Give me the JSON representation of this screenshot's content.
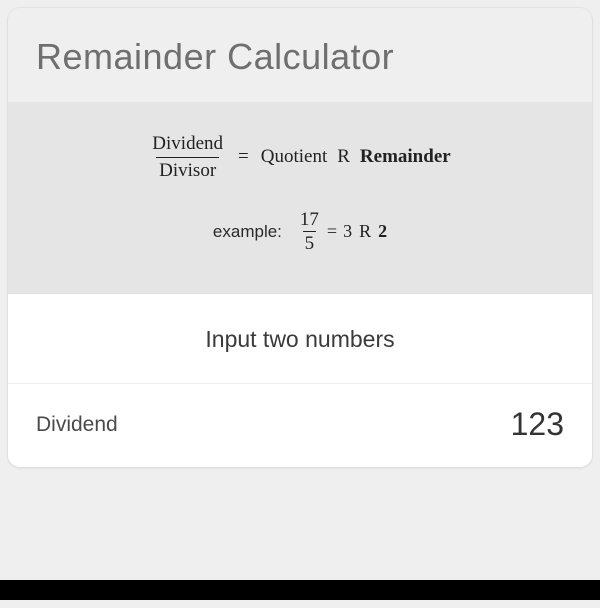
{
  "title": "Remainder Calculator",
  "colors": {
    "page_bg": "#efefef",
    "panel_bg": "#e5e5e5",
    "section_bg": "#ffffff",
    "title_color": "#6f6f6f",
    "formula_color": "#222222",
    "label_color": "#4a4a4a",
    "value_color": "#333333",
    "border_color": "#e2e2e2",
    "footer_bg": "#000000"
  },
  "formula": {
    "fraction": {
      "numerator": "Dividend",
      "denominator": "Divisor"
    },
    "equals": "=",
    "quotient_word": "Quotient",
    "r_word": "R",
    "remainder_word": "Remainder"
  },
  "example": {
    "label": "example:",
    "fraction": {
      "numerator": "17",
      "denominator": "5"
    },
    "equals": "=",
    "quotient_value": "3",
    "r_word": "R",
    "remainder_value": "2"
  },
  "input_section_heading": "Input two numbers",
  "fields": {
    "dividend": {
      "label": "Dividend",
      "value": "123"
    }
  }
}
